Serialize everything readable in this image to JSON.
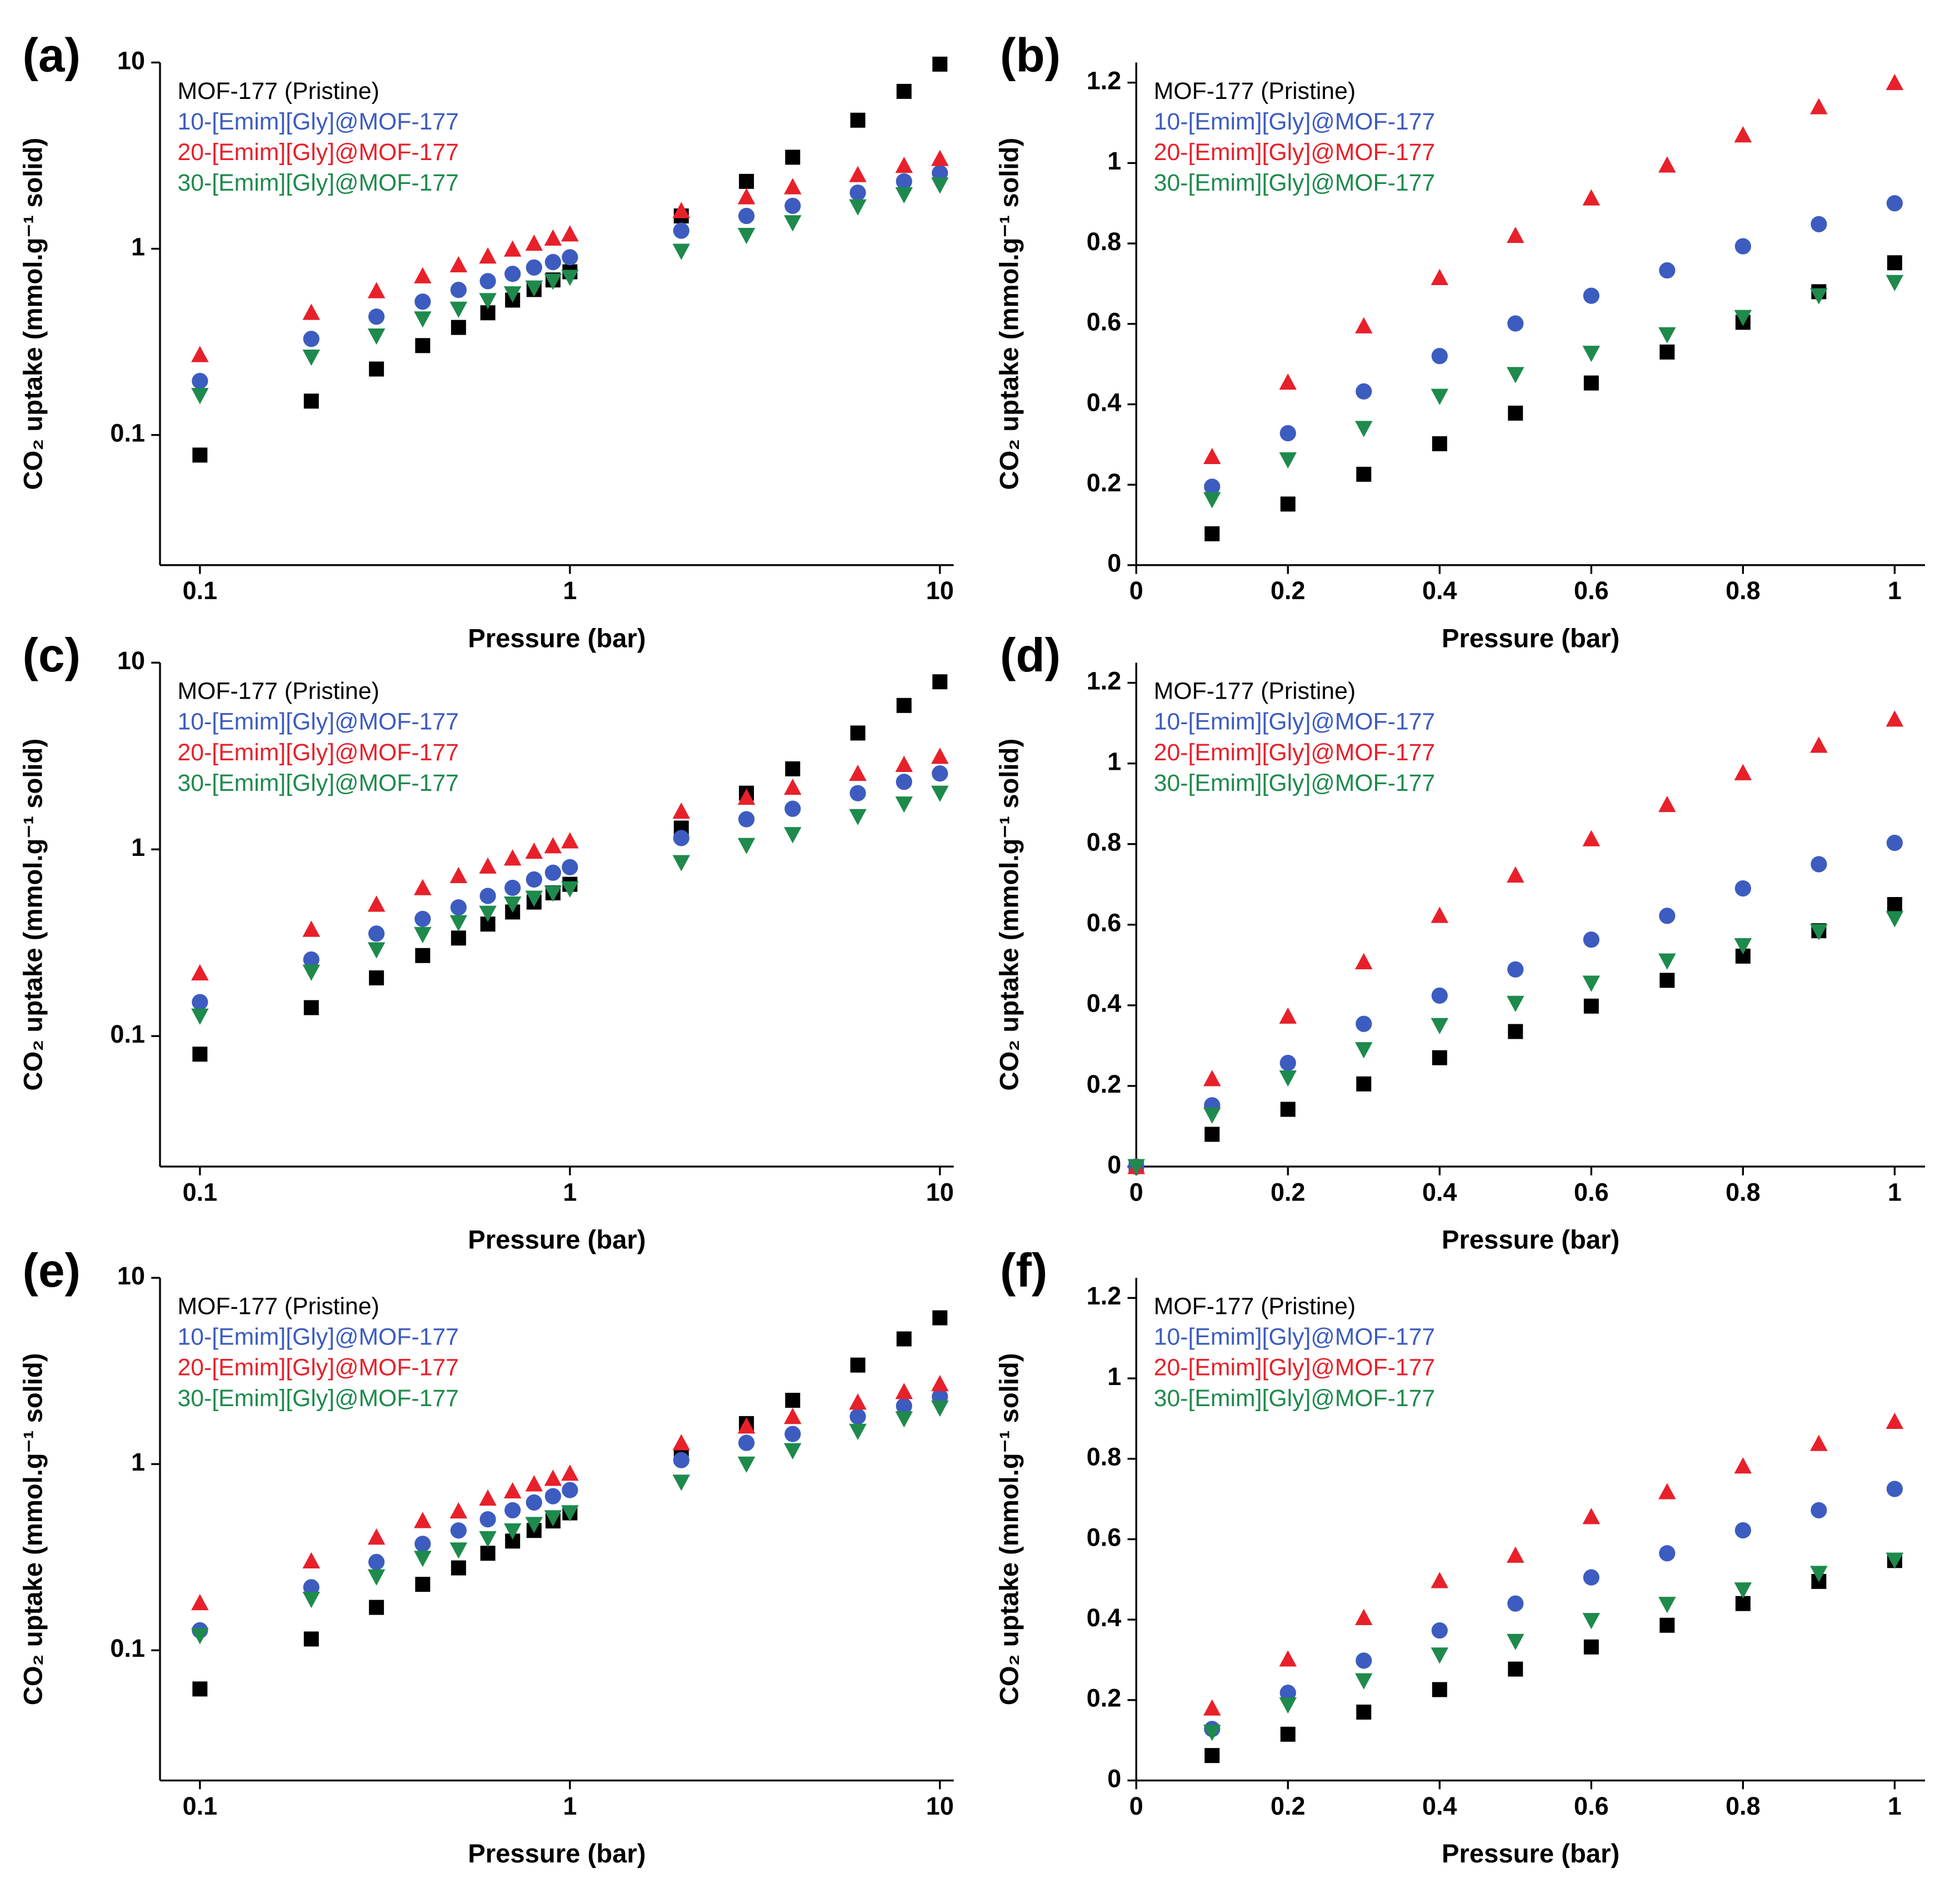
{
  "chart_data": [
    {
      "type": "scatter",
      "panel_label": "(a)",
      "xlabel": "Pressure (bar)",
      "ylabel": "CO₂ uptake (mmol.g⁻¹ solid)",
      "xscale": "log",
      "yscale": "log",
      "xlim": [
        0.078,
        10.9
      ],
      "ylim": [
        0.02,
        10
      ],
      "xticks": [
        0.1,
        1,
        10
      ],
      "yticks": [
        0.1,
        1,
        10
      ],
      "legend": "upper left",
      "x": [
        0.1,
        0.2,
        0.3,
        0.4,
        0.5,
        0.6,
        0.7,
        0.8,
        0.9,
        1,
        2,
        3,
        4,
        6,
        8,
        10
      ],
      "series": [
        {
          "name": "MOF-177 (Pristine)",
          "color": "#000000",
          "marker": "square",
          "values": [
            0.078,
            0.152,
            0.226,
            0.302,
            0.378,
            0.453,
            0.53,
            0.604,
            0.68,
            0.752,
            1.5,
            2.3,
            3.1,
            4.9,
            7.0,
            9.8
          ]
        },
        {
          "name": "10-[Emim][Gly]@MOF-177",
          "color": "#3d5cc0",
          "marker": "circle",
          "values": [
            0.195,
            0.328,
            0.432,
            0.52,
            0.601,
            0.67,
            0.733,
            0.793,
            0.848,
            0.9,
            1.25,
            1.5,
            1.7,
            2.0,
            2.3,
            2.55
          ]
        },
        {
          "name": "20-[Emim][Gly]@MOF-177",
          "color": "#e8202a",
          "marker": "triangle-up",
          "values": [
            0.27,
            0.455,
            0.595,
            0.715,
            0.82,
            0.913,
            0.995,
            1.07,
            1.14,
            1.2,
            1.6,
            1.9,
            2.15,
            2.5,
            2.8,
            3.05
          ]
        },
        {
          "name": "30-[Emim][Gly]@MOF-177",
          "color": "#1e8a4c",
          "marker": "triangle-down",
          "values": [
            0.163,
            0.262,
            0.34,
            0.42,
            0.474,
            0.527,
            0.573,
            0.616,
            0.67,
            0.703,
            0.97,
            1.18,
            1.38,
            1.68,
            1.95,
            2.2
          ]
        }
      ]
    },
    {
      "type": "scatter",
      "panel_label": "(b)",
      "xlabel": "Pressure (bar)",
      "ylabel": "CO₂ uptake (mmol.g⁻¹ solid)",
      "xscale": "linear",
      "yscale": "linear",
      "xlim": [
        0,
        1.04
      ],
      "ylim": [
        0,
        1.25
      ],
      "xticks": [
        0,
        0.2,
        0.4,
        0.6,
        0.8,
        1
      ],
      "yticks": [
        0,
        0.2,
        0.4,
        0.6,
        0.8,
        1,
        1.2
      ],
      "legend": "upper left",
      "x": [
        0.1,
        0.2,
        0.3,
        0.4,
        0.5,
        0.6,
        0.7,
        0.8,
        0.9,
        1
      ],
      "series": [
        {
          "name": "MOF-177 (Pristine)",
          "color": "#000000",
          "marker": "square",
          "values": [
            0.078,
            0.152,
            0.226,
            0.302,
            0.378,
            0.453,
            0.53,
            0.604,
            0.68,
            0.752
          ]
        },
        {
          "name": "10-[Emim][Gly]@MOF-177",
          "color": "#3d5cc0",
          "marker": "circle",
          "values": [
            0.195,
            0.328,
            0.432,
            0.52,
            0.601,
            0.67,
            0.733,
            0.793,
            0.848,
            0.9
          ]
        },
        {
          "name": "20-[Emim][Gly]@MOF-177",
          "color": "#e8202a",
          "marker": "triangle-up",
          "values": [
            0.27,
            0.455,
            0.595,
            0.715,
            0.82,
            0.913,
            0.995,
            1.07,
            1.14,
            1.2
          ]
        },
        {
          "name": "30-[Emim][Gly]@MOF-177",
          "color": "#1e8a4c",
          "marker": "triangle-down",
          "values": [
            0.163,
            0.262,
            0.34,
            0.42,
            0.474,
            0.527,
            0.573,
            0.616,
            0.67,
            0.703
          ]
        }
      ]
    },
    {
      "type": "scatter",
      "panel_label": "(c)",
      "xlabel": "Pressure (bar)",
      "ylabel": "CO₂ uptake (mmol.g⁻¹ solid)",
      "xscale": "log",
      "yscale": "log",
      "xlim": [
        0.078,
        10.9
      ],
      "ylim": [
        0.02,
        10
      ],
      "xticks": [
        0.1,
        1,
        10
      ],
      "yticks": [
        0.1,
        1,
        10
      ],
      "legend": "upper left",
      "x": [
        0.1,
        0.2,
        0.3,
        0.4,
        0.5,
        0.6,
        0.7,
        0.8,
        0.9,
        1,
        2,
        3,
        4,
        6,
        8,
        10
      ],
      "series": [
        {
          "name": "MOF-177 (Pristine)",
          "color": "#000000",
          "marker": "square",
          "values": [
            0.08,
            0.142,
            0.205,
            0.27,
            0.335,
            0.398,
            0.462,
            0.522,
            0.585,
            0.65,
            1.3,
            2.0,
            2.7,
            4.2,
            5.9,
            7.9
          ]
        },
        {
          "name": "10-[Emim][Gly]@MOF-177",
          "color": "#3d5cc0",
          "marker": "circle",
          "values": [
            0.152,
            0.257,
            0.354,
            0.424,
            0.489,
            0.563,
            0.622,
            0.69,
            0.75,
            0.803,
            1.15,
            1.45,
            1.65,
            2.0,
            2.3,
            2.55
          ]
        },
        {
          "name": "20-[Emim][Gly]@MOF-177",
          "color": "#e8202a",
          "marker": "triangle-up",
          "values": [
            0.218,
            0.373,
            0.508,
            0.623,
            0.723,
            0.813,
            0.898,
            0.977,
            1.045,
            1.11,
            1.6,
            1.9,
            2.15,
            2.55,
            2.85,
            3.15
          ]
        },
        {
          "name": "30-[Emim][Gly]@MOF-177",
          "color": "#1e8a4c",
          "marker": "triangle-down",
          "values": [
            0.128,
            0.22,
            0.29,
            0.35,
            0.405,
            0.455,
            0.51,
            0.548,
            0.583,
            0.615,
            0.85,
            1.05,
            1.2,
            1.5,
            1.75,
            2.0
          ]
        }
      ]
    },
    {
      "type": "scatter",
      "panel_label": "(d)",
      "xlabel": "Pressure (bar)",
      "ylabel": "CO₂ uptake (mmol.g⁻¹ solid)",
      "xscale": "linear",
      "yscale": "linear",
      "xlim": [
        0,
        1.04
      ],
      "ylim": [
        0,
        1.25
      ],
      "xticks": [
        0,
        0.2,
        0.4,
        0.6,
        0.8,
        1
      ],
      "yticks": [
        0,
        0.2,
        0.4,
        0.6,
        0.8,
        1,
        1.2
      ],
      "legend": "upper left",
      "x": [
        0,
        0.1,
        0.2,
        0.3,
        0.4,
        0.5,
        0.6,
        0.7,
        0.8,
        0.9,
        1
      ],
      "series": [
        {
          "name": "MOF-177 (Pristine)",
          "color": "#000000",
          "marker": "square",
          "values": [
            0,
            0.08,
            0.142,
            0.205,
            0.27,
            0.335,
            0.398,
            0.462,
            0.522,
            0.585,
            0.65
          ]
        },
        {
          "name": "10-[Emim][Gly]@MOF-177",
          "color": "#3d5cc0",
          "marker": "circle",
          "values": [
            0,
            0.152,
            0.257,
            0.354,
            0.424,
            0.489,
            0.563,
            0.622,
            0.69,
            0.75,
            0.803
          ]
        },
        {
          "name": "20-[Emim][Gly]@MOF-177",
          "color": "#e8202a",
          "marker": "triangle-up",
          "values": [
            0,
            0.218,
            0.373,
            0.508,
            0.623,
            0.723,
            0.813,
            0.898,
            0.977,
            1.045,
            1.11
          ]
        },
        {
          "name": "30-[Emim][Gly]@MOF-177",
          "color": "#1e8a4c",
          "marker": "triangle-down",
          "values": [
            0,
            0.128,
            0.22,
            0.29,
            0.35,
            0.405,
            0.455,
            0.51,
            0.548,
            0.583,
            0.615
          ]
        }
      ]
    },
    {
      "type": "scatter",
      "panel_label": "(e)",
      "xlabel": "Pressure (bar)",
      "ylabel": "CO₂ uptake (mmol.g⁻¹ solid)",
      "xscale": "log",
      "yscale": "log",
      "xlim": [
        0.078,
        10.9
      ],
      "ylim": [
        0.02,
        10
      ],
      "xticks": [
        0.1,
        1,
        10
      ],
      "yticks": [
        0.1,
        1,
        10
      ],
      "legend": "upper left",
      "x": [
        0.1,
        0.2,
        0.3,
        0.4,
        0.5,
        0.6,
        0.7,
        0.8,
        0.9,
        1,
        2,
        3,
        4,
        6,
        8,
        10
      ],
      "series": [
        {
          "name": "MOF-177 (Pristine)",
          "color": "#000000",
          "marker": "square",
          "values": [
            0.062,
            0.115,
            0.17,
            0.226,
            0.277,
            0.332,
            0.386,
            0.44,
            0.495,
            0.547,
            1.1,
            1.65,
            2.2,
            3.4,
            4.7,
            6.1
          ]
        },
        {
          "name": "10-[Emim][Gly]@MOF-177",
          "color": "#3d5cc0",
          "marker": "circle",
          "values": [
            0.128,
            0.218,
            0.298,
            0.373,
            0.44,
            0.505,
            0.565,
            0.622,
            0.672,
            0.725,
            1.05,
            1.3,
            1.45,
            1.8,
            2.05,
            2.3
          ]
        },
        {
          "name": "20-[Emim][Gly]@MOF-177",
          "color": "#e8202a",
          "marker": "triangle-up",
          "values": [
            0.18,
            0.302,
            0.405,
            0.497,
            0.56,
            0.656,
            0.718,
            0.782,
            0.838,
            0.893,
            1.3,
            1.6,
            1.8,
            2.15,
            2.45,
            2.7
          ]
        },
        {
          "name": "30-[Emim][Gly]@MOF-177",
          "color": "#1e8a4c",
          "marker": "triangle-down",
          "values": [
            0.12,
            0.188,
            0.248,
            0.312,
            0.346,
            0.398,
            0.438,
            0.474,
            0.515,
            0.548,
            0.8,
            1.0,
            1.18,
            1.5,
            1.75,
            2.0
          ]
        }
      ]
    },
    {
      "type": "scatter",
      "panel_label": "(f)",
      "xlabel": "Pressure (bar)",
      "ylabel": "CO₂ uptake (mmol.g⁻¹ solid)",
      "xscale": "linear",
      "yscale": "linear",
      "xlim": [
        0,
        1.04
      ],
      "ylim": [
        0,
        1.25
      ],
      "xticks": [
        0,
        0.2,
        0.4,
        0.6,
        0.8,
        1
      ],
      "yticks": [
        0,
        0.2,
        0.4,
        0.6,
        0.8,
        1,
        1.2
      ],
      "legend": "upper left",
      "x": [
        0.1,
        0.2,
        0.3,
        0.4,
        0.5,
        0.6,
        0.7,
        0.8,
        0.9,
        1
      ],
      "series": [
        {
          "name": "MOF-177 (Pristine)",
          "color": "#000000",
          "marker": "square",
          "values": [
            0.062,
            0.115,
            0.17,
            0.226,
            0.277,
            0.332,
            0.386,
            0.44,
            0.495,
            0.547
          ]
        },
        {
          "name": "10-[Emim][Gly]@MOF-177",
          "color": "#3d5cc0",
          "marker": "circle",
          "values": [
            0.128,
            0.218,
            0.298,
            0.373,
            0.44,
            0.505,
            0.565,
            0.622,
            0.672,
            0.725
          ]
        },
        {
          "name": "20-[Emim][Gly]@MOF-177",
          "color": "#e8202a",
          "marker": "triangle-up",
          "values": [
            0.18,
            0.302,
            0.405,
            0.497,
            0.56,
            0.656,
            0.718,
            0.782,
            0.838,
            0.893
          ]
        },
        {
          "name": "30-[Emim][Gly]@MOF-177",
          "color": "#1e8a4c",
          "marker": "triangle-down",
          "values": [
            0.12,
            0.188,
            0.248,
            0.312,
            0.346,
            0.398,
            0.438,
            0.474,
            0.515,
            0.548
          ]
        }
      ]
    }
  ]
}
